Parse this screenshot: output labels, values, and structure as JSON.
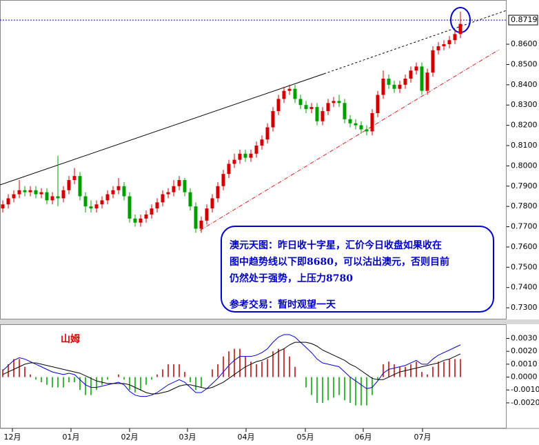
{
  "chart_data": [
    {
      "type": "candlestick",
      "up_color": "#d40000",
      "down_color": "#00a000",
      "xlim": [
        -0.5,
        91.375
      ],
      "ylim": [
        0.7246,
        0.8818
      ],
      "yticks": [
        {
          "value": 0.73,
          "label": "0.7300"
        },
        {
          "value": 0.74,
          "label": "0.7400"
        },
        {
          "value": 0.75,
          "label": "0.7500"
        },
        {
          "value": 0.76,
          "label": "0.7600"
        },
        {
          "value": 0.77,
          "label": "0.7700"
        },
        {
          "value": 0.78,
          "label": "0.7800"
        },
        {
          "value": 0.79,
          "label": "0.7900"
        },
        {
          "value": 0.8,
          "label": "0.8000"
        },
        {
          "value": 0.81,
          "label": "0.8100"
        },
        {
          "value": 0.82,
          "label": "0.8200"
        },
        {
          "value": 0.83,
          "label": "0.8300"
        },
        {
          "value": 0.84,
          "label": "0.8400"
        },
        {
          "value": 0.85,
          "label": "0.8500"
        },
        {
          "value": 0.86,
          "label": "0.8600"
        }
      ],
      "last_price": 0.8719,
      "open": [
        0.779,
        0.781,
        0.784,
        0.786,
        0.788,
        0.787,
        0.788,
        0.786,
        0.787,
        0.783,
        0.785,
        0.784,
        0.788,
        0.793,
        0.795,
        0.785,
        0.78,
        0.779,
        0.781,
        0.783,
        0.786,
        0.788,
        0.79,
        0.785,
        0.774,
        0.772,
        0.774,
        0.776,
        0.779,
        0.782,
        0.786,
        0.787,
        0.79,
        0.793,
        0.787,
        0.78,
        0.769,
        0.773,
        0.779,
        0.784,
        0.79,
        0.796,
        0.801,
        0.803,
        0.806,
        0.804,
        0.806,
        0.81,
        0.813,
        0.819,
        0.827,
        0.833,
        0.837,
        0.838,
        0.833,
        0.83,
        0.828,
        0.829,
        0.822,
        0.827,
        0.831,
        0.832,
        0.831,
        0.823,
        0.821,
        0.82,
        0.818,
        0.817,
        0.826,
        0.835,
        0.843,
        0.84,
        0.838,
        0.84,
        0.843,
        0.847,
        0.849,
        0.837,
        0.846,
        0.857,
        0.859,
        0.86,
        0.862,
        0.865
      ],
      "high": [
        0.783,
        0.786,
        0.788,
        0.793,
        0.79,
        0.79,
        0.79,
        0.789,
        0.789,
        0.787,
        0.805,
        0.79,
        0.795,
        0.799,
        0.797,
        0.787,
        0.783,
        0.783,
        0.785,
        0.788,
        0.79,
        0.794,
        0.792,
        0.787,
        0.776,
        0.776,
        0.778,
        0.781,
        0.784,
        0.788,
        0.789,
        0.793,
        0.795,
        0.794,
        0.789,
        0.782,
        0.775,
        0.781,
        0.786,
        0.792,
        0.798,
        0.803,
        0.806,
        0.808,
        0.808,
        0.808,
        0.812,
        0.815,
        0.821,
        0.829,
        0.835,
        0.839,
        0.84,
        0.84,
        0.835,
        0.832,
        0.831,
        0.831,
        0.829,
        0.833,
        0.834,
        0.835,
        0.833,
        0.825,
        0.823,
        0.822,
        0.82,
        0.828,
        0.837,
        0.847,
        0.845,
        0.842,
        0.842,
        0.845,
        0.849,
        0.851,
        0.851,
        0.848,
        0.859,
        0.861,
        0.862,
        0.864,
        0.867,
        0.876
      ],
      "low": [
        0.777,
        0.779,
        0.782,
        0.784,
        0.785,
        0.785,
        0.784,
        0.784,
        0.781,
        0.781,
        0.78,
        0.782,
        0.786,
        0.791,
        0.783,
        0.777,
        0.777,
        0.777,
        0.779,
        0.781,
        0.784,
        0.786,
        0.783,
        0.772,
        0.77,
        0.77,
        0.772,
        0.774,
        0.777,
        0.78,
        0.784,
        0.785,
        0.788,
        0.785,
        0.778,
        0.767,
        0.767,
        0.771,
        0.777,
        0.782,
        0.788,
        0.794,
        0.799,
        0.801,
        0.802,
        0.802,
        0.804,
        0.808,
        0.811,
        0.817,
        0.825,
        0.831,
        0.835,
        0.831,
        0.828,
        0.826,
        0.826,
        0.82,
        0.82,
        0.825,
        0.829,
        0.829,
        0.821,
        0.819,
        0.818,
        0.816,
        0.815,
        0.815,
        0.824,
        0.833,
        0.838,
        0.836,
        0.836,
        0.838,
        0.841,
        0.845,
        0.835,
        0.835,
        0.844,
        0.855,
        0.857,
        0.858,
        0.86,
        0.863
      ],
      "close": [
        0.781,
        0.784,
        0.786,
        0.788,
        0.787,
        0.788,
        0.786,
        0.787,
        0.783,
        0.785,
        0.784,
        0.788,
        0.793,
        0.795,
        0.785,
        0.78,
        0.779,
        0.781,
        0.783,
        0.786,
        0.788,
        0.79,
        0.785,
        0.774,
        0.772,
        0.774,
        0.776,
        0.779,
        0.782,
        0.786,
        0.787,
        0.79,
        0.793,
        0.787,
        0.78,
        0.769,
        0.773,
        0.779,
        0.784,
        0.79,
        0.796,
        0.801,
        0.803,
        0.806,
        0.804,
        0.806,
        0.81,
        0.813,
        0.819,
        0.827,
        0.833,
        0.837,
        0.838,
        0.833,
        0.83,
        0.828,
        0.829,
        0.822,
        0.827,
        0.831,
        0.832,
        0.831,
        0.823,
        0.821,
        0.82,
        0.818,
        0.817,
        0.826,
        0.835,
        0.843,
        0.84,
        0.838,
        0.84,
        0.843,
        0.847,
        0.849,
        0.837,
        0.846,
        0.857,
        0.859,
        0.86,
        0.862,
        0.865,
        0.87
      ],
      "annotations": [
        "澳元天图：昨日收十字星，汇价今日收盘如果收在",
        "图中趋势线以下即8680，可以沽出澳元，否则目前",
        "仍然处于强势，上压力8780",
        "参考交易：暂时观望一天"
      ]
    },
    {
      "type": "macd",
      "title": "山姆",
      "xlim": [
        -0.5,
        91.375
      ],
      "xticks": [
        {
          "value": 1.75,
          "label": "12月"
        },
        {
          "value": 12.375,
          "label": "01月"
        },
        {
          "value": 23,
          "label": "02月"
        },
        {
          "value": 33.5,
          "label": "03月"
        },
        {
          "value": 44.125,
          "label": "04月"
        },
        {
          "value": 54.875,
          "label": "05月"
        },
        {
          "value": 65.375,
          "label": "06月"
        },
        {
          "value": 76.125,
          "label": "07月"
        }
      ],
      "ylim": [
        -0.0042,
        0.0041
      ],
      "yticks": [
        {
          "value": 0.003,
          "label": "0.0030"
        },
        {
          "value": 0.002,
          "label": "0.0020"
        },
        {
          "value": 0.001,
          "label": "0.0010"
        },
        {
          "value": 0,
          "label": "0.0000"
        },
        {
          "value": -0.001,
          "label": "-0.0010"
        },
        {
          "value": -0.002,
          "label": "-0.0020"
        }
      ],
      "pos_color": "#c00000",
      "neg_color": "#00a000",
      "macd_color": "#0000cc",
      "signal_color": "#000000",
      "histogram": [
        0.0006,
        0.001,
        0.0014,
        0.0014,
        0.0008,
        0.0002,
        -0.0002,
        -0.0004,
        -0.0006,
        -0.0008,
        -0.0008,
        -0.0008,
        -0.0004,
        -0.0004,
        -0.001,
        -0.0014,
        -0.0014,
        -0.001,
        -0.0006,
        -0.0002,
        0,
        0.0002,
        -0.0002,
        -0.001,
        -0.0012,
        -0.001,
        -0.0006,
        -0.0002,
        0.0002,
        0.0006,
        0.001,
        0.001,
        0.001,
        0.0004,
        -0.0004,
        -0.001,
        -0.0008,
        0,
        0.0006,
        0.001,
        0.0016,
        0.002,
        0.0022,
        0.0022,
        0.0016,
        0.0012,
        0.001,
        0.0012,
        0.0014,
        0.002,
        0.0022,
        0.0022,
        0.0016,
        0.0008,
        0,
        -0.0008,
        -0.0014,
        -0.002,
        -0.002,
        -0.0018,
        -0.0016,
        -0.0014,
        -0.0018,
        -0.002,
        -0.0022,
        -0.0022,
        -0.0022,
        -0.0014,
        -0.0002,
        0.001,
        0.0012,
        0.001,
        0.0008,
        0.0008,
        0.001,
        0.0012,
        0.0004,
        0.0002,
        0.0008,
        0.0012,
        0.0012,
        0.0014,
        0.0014,
        0.0014
      ],
      "macd": [
        0.0005,
        0.0009,
        0.0013,
        0.0015,
        0.0014,
        0.0012,
        0.001,
        0.0008,
        0.0006,
        0.0004,
        0.0003,
        0.0002,
        0.0003,
        0.0002,
        -0.0002,
        -0.0006,
        -0.0008,
        -0.0008,
        -0.0007,
        -0.0006,
        -0.0005,
        -0.0004,
        -0.0006,
        -0.0011,
        -0.0014,
        -0.0015,
        -0.0015,
        -0.0014,
        -0.0012,
        -0.0009,
        -0.0006,
        -0.0004,
        -0.0002,
        -0.0004,
        -0.0008,
        -0.0012,
        -0.0012,
        -0.0009,
        -0.0005,
        -0.0001,
        0.0004,
        0.0009,
        0.0013,
        0.0016,
        0.0016,
        0.0016,
        0.0017,
        0.0019,
        0.0022,
        0.0027,
        0.0031,
        0.0033,
        0.0033,
        0.0031,
        0.0027,
        0.0023,
        0.0019,
        0.0014,
        0.0011,
        0.001,
        0.0009,
        0.0008,
        0.0004,
        0,
        -0.0003,
        -0.0006,
        -0.0009,
        -0.0008,
        -0.0003,
        0.0003,
        0.0006,
        0.0007,
        0.0008,
        0.0009,
        0.0011,
        0.0013,
        0.001,
        0.001,
        0.0014,
        0.0017,
        0.0019,
        0.0021,
        0.0023,
        0.0025
      ],
      "signal": [
        0.0002,
        0.0004,
        0.0006,
        0.0008,
        0.001,
        0.0011,
        0.0011,
        0.001,
        0.0009,
        0.0008,
        0.0007,
        0.0006,
        0.0005,
        0.0004,
        0.0003,
        0.0001,
        -0.0001,
        -0.0003,
        -0.0004,
        -0.0005,
        -0.0005,
        -0.0005,
        -0.0005,
        -0.0006,
        -0.0008,
        -0.001,
        -0.0012,
        -0.0013,
        -0.0013,
        -0.0012,
        -0.0011,
        -0.0009,
        -0.0007,
        -0.0006,
        -0.0006,
        -0.0007,
        -0.0008,
        -0.0009,
        -0.0008,
        -0.0006,
        -0.0004,
        -0.0001,
        0.0002,
        0.0005,
        0.0008,
        0.001,
        0.0012,
        0.0013,
        0.0015,
        0.0017,
        0.002,
        0.0022,
        0.0025,
        0.0027,
        0.0027,
        0.0027,
        0.0026,
        0.0024,
        0.0021,
        0.0019,
        0.0017,
        0.0015,
        0.0013,
        0.001,
        0.0008,
        0.0005,
        0.0002,
        -0.0001,
        -0.0002,
        -0.0002,
        0,
        0.0002,
        0.0004,
        0.0005,
        0.0006,
        0.0007,
        0.0008,
        0.0009,
        0.001,
        0.0011,
        0.0013,
        0.0014,
        0.0016,
        0.0018
      ]
    }
  ]
}
